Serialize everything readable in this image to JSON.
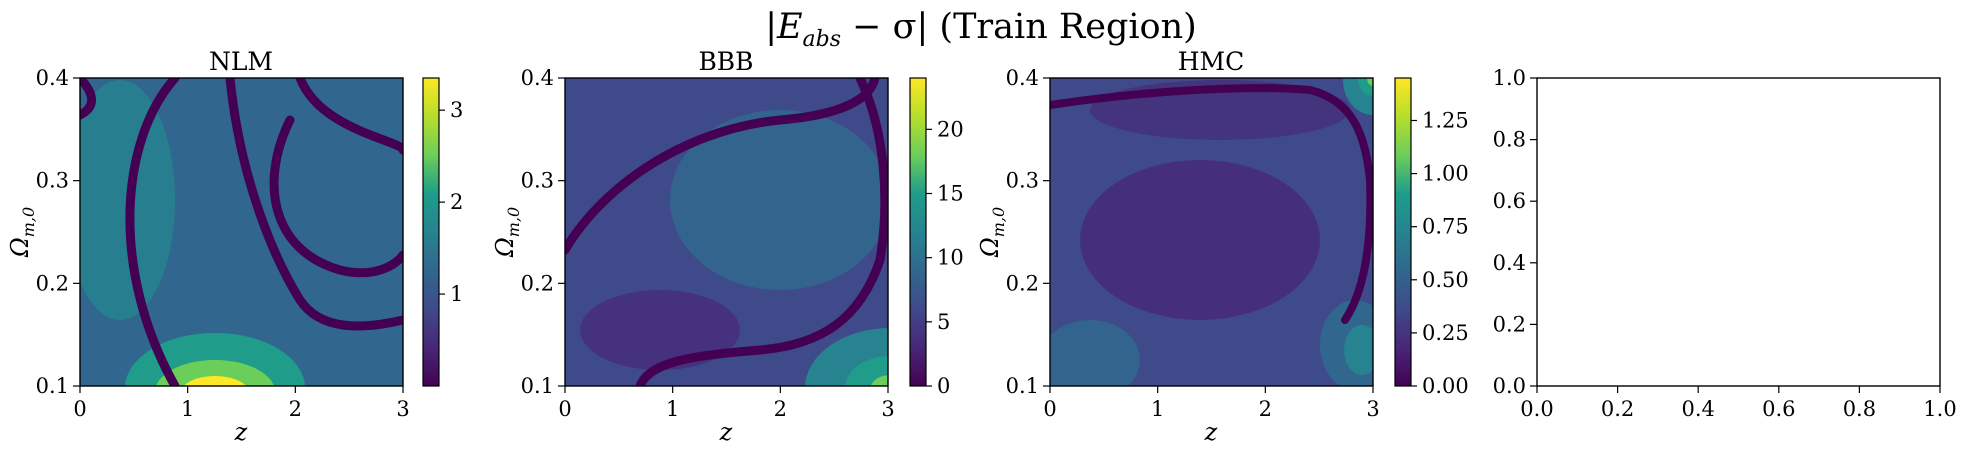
{
  "figure": {
    "suptitle_main": "|E",
    "suptitle_sub": "abs",
    "suptitle_rest": " − σ| (Train Region)"
  },
  "colors": {
    "viridis": [
      "#440154",
      "#482777",
      "#3f4a8a",
      "#31678e",
      "#26838f",
      "#1f9d8a",
      "#6cce5a",
      "#b6de2b",
      "#fee825"
    ],
    "axis": "#000000",
    "background": "#ffffff"
  },
  "chart_data": [
    {
      "type": "heatmap",
      "title": "NLM",
      "xlabel": "z",
      "ylabel_main": "Ω",
      "ylabel_sub": "m,0",
      "xlim": [
        0,
        3
      ],
      "ylim": [
        0.1,
        0.4
      ],
      "xticks": [
        "0",
        "1",
        "2",
        "3"
      ],
      "yticks": [
        "0.1",
        "0.2",
        "0.3",
        "0.4"
      ],
      "colorbar": {
        "range": [
          0,
          3.35
        ],
        "ticks": [
          "1",
          "2",
          "3"
        ],
        "tick_values": [
          1,
          2,
          3
        ]
      },
      "features": {
        "hotspot": {
          "z": 1.3,
          "omega": 0.1,
          "value": 3.3
        }
      }
    },
    {
      "type": "heatmap",
      "title": "BBB",
      "xlabel": "z",
      "ylabel_main": "Ω",
      "ylabel_sub": "m,0",
      "xlim": [
        0,
        3
      ],
      "ylim": [
        0.1,
        0.4
      ],
      "xticks": [
        "0",
        "1",
        "2",
        "3"
      ],
      "yticks": [
        "0.1",
        "0.2",
        "0.3",
        "0.4"
      ],
      "colorbar": {
        "range": [
          0,
          24
        ],
        "ticks": [
          "0",
          "5",
          "10",
          "15",
          "20"
        ],
        "tick_values": [
          0,
          5,
          10,
          15,
          20
        ]
      },
      "features": {
        "hotspot": {
          "z": 3.0,
          "omega": 0.1,
          "value": 24
        }
      }
    },
    {
      "type": "heatmap",
      "title": "HMC",
      "xlabel": "z",
      "ylabel_main": "Ω",
      "ylabel_sub": "m,0",
      "xlim": [
        0,
        3
      ],
      "ylim": [
        0.1,
        0.4
      ],
      "xticks": [
        "0",
        "1",
        "2",
        "3"
      ],
      "yticks": [
        "0.1",
        "0.2",
        "0.3",
        "0.4"
      ],
      "colorbar": {
        "range": [
          0,
          1.45
        ],
        "ticks": [
          "0.00",
          "0.25",
          "0.50",
          "0.75",
          "1.00",
          "1.25"
        ],
        "tick_values": [
          0,
          0.25,
          0.5,
          0.75,
          1.0,
          1.25
        ]
      },
      "features": {
        "hotspot": {
          "z": 3.0,
          "omega": 0.4,
          "value": 1.4
        }
      }
    },
    {
      "type": "empty",
      "xlim": [
        0,
        1
      ],
      "ylim": [
        0,
        1
      ],
      "xticks": [
        "0.0",
        "0.2",
        "0.4",
        "0.6",
        "0.8",
        "1.0"
      ],
      "yticks": [
        "0.0",
        "0.2",
        "0.4",
        "0.6",
        "0.8",
        "1.0"
      ]
    }
  ]
}
